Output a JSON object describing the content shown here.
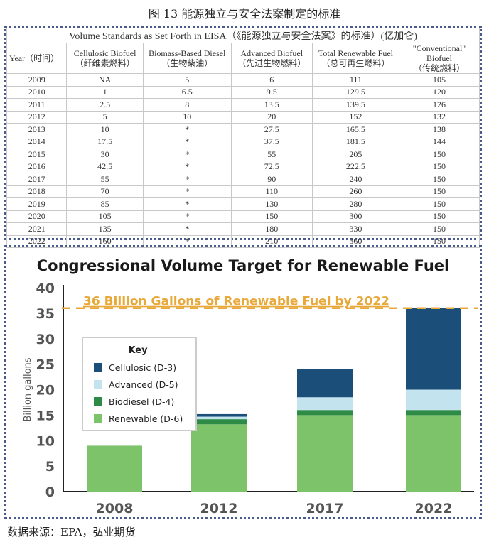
{
  "figure_title": "图 13  能源独立与安全法案制定的标准",
  "table": {
    "caption": "Volume Standards as Set Forth in EISA（《能源独立与安全法案》的标准）(亿加仑)",
    "headers": [
      {
        "en": "Year（时间）",
        "cn": ""
      },
      {
        "en": "Cellulosic Biofuel",
        "cn": "（纤维素燃料）"
      },
      {
        "en": "Biomass-Based Diesel",
        "cn": "（生物柴油）"
      },
      {
        "en": "Advanced Biofuel",
        "cn": "（先进生物燃料）"
      },
      {
        "en": "Total Renewable Fuel",
        "cn": "（总可再生燃料）"
      },
      {
        "en": "\"Conventional\" Biofuel",
        "cn": "（传统燃料）"
      }
    ],
    "rows": [
      [
        "2009",
        "NA",
        "5",
        "6",
        "111",
        "105"
      ],
      [
        "2010",
        "1",
        "6.5",
        "9.5",
        "129.5",
        "120"
      ],
      [
        "2011",
        "2.5",
        "8",
        "13.5",
        "139.5",
        "126"
      ],
      [
        "2012",
        "5",
        "10",
        "20",
        "152",
        "132"
      ],
      [
        "2013",
        "10",
        "*",
        "27.5",
        "165.5",
        "138"
      ],
      [
        "2014",
        "17.5",
        "*",
        "37.5",
        "181.5",
        "144"
      ],
      [
        "2015",
        "30",
        "*",
        "55",
        "205",
        "150"
      ],
      [
        "2016",
        "42.5",
        "*",
        "72.5",
        "222.5",
        "150"
      ],
      [
        "2017",
        "55",
        "*",
        "90",
        "240",
        "150"
      ],
      [
        "2018",
        "70",
        "*",
        "110",
        "260",
        "150"
      ],
      [
        "2019",
        "85",
        "*",
        "130",
        "280",
        "150"
      ],
      [
        "2020",
        "105",
        "*",
        "150",
        "300",
        "150"
      ],
      [
        "2021",
        "135",
        "*",
        "180",
        "330",
        "150"
      ],
      [
        "2022",
        "160",
        "*",
        "210",
        "360",
        "150"
      ]
    ]
  },
  "chart_data": {
    "type": "bar",
    "stacked": true,
    "title": "Congressional Volume Target for Renewable Fuel",
    "ylabel": "Billion gallons",
    "xlabel": "",
    "ylim": [
      0,
      40
    ],
    "yticks": [
      "0",
      "5",
      "10",
      "15",
      "20",
      "25",
      "30",
      "35",
      "40"
    ],
    "categories": [
      "2008",
      "2012",
      "2017",
      "2022"
    ],
    "series": [
      {
        "name": "Renewable (D-6)",
        "color": "#7cc36a",
        "values": [
          9,
          13.2,
          15,
          15
        ]
      },
      {
        "name": "Biodiesel (D-4)",
        "color": "#2e8b45",
        "values": [
          0,
          1,
          1,
          1
        ]
      },
      {
        "name": "Advanced (D-5)",
        "color": "#c3e3ef",
        "values": [
          0,
          0.5,
          2.5,
          4
        ]
      },
      {
        "name": "Cellulosic (D-3)",
        "color": "#1b4f7a",
        "values": [
          0,
          0.5,
          5.5,
          16
        ]
      }
    ],
    "legend_title": "Key",
    "legend_order": [
      "Cellulosic (D-3)",
      "Advanced (D-5)",
      "Biodiesel (D-4)",
      "Renewable (D-6)"
    ],
    "legend_placement": "top-left",
    "target_line": {
      "value": 36,
      "label": "36 Billion Gallons of Renewable Fuel by 2022",
      "color": "#e8a93a"
    },
    "grid": false
  },
  "source": "数据来源：EPA，弘业期货"
}
